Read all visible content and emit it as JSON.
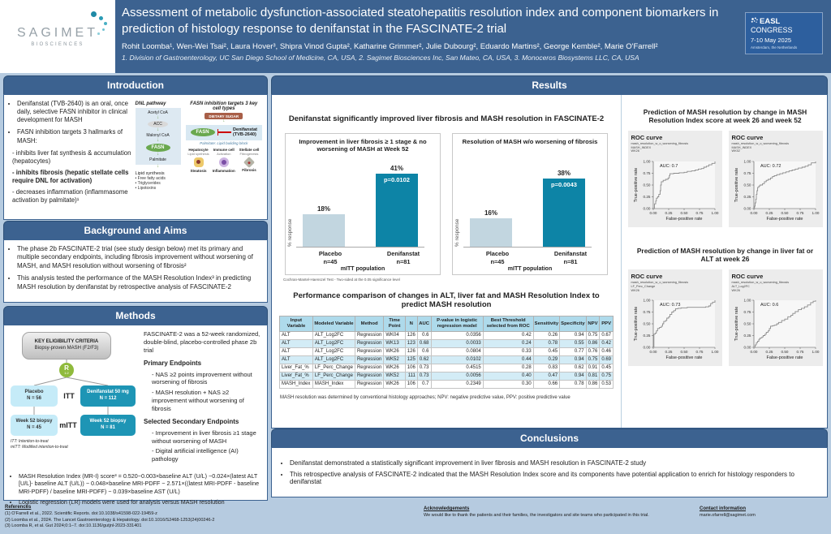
{
  "colors": {
    "poster_bg": "#b6cbe0",
    "header_bg": "#3c6290",
    "section_header_bg": "#3c6290",
    "badge_bg": "#2d5f9e",
    "teal_bar": "#0d84a6",
    "light_bar": "#c2d6e0",
    "flow_light": "#c5ebf8",
    "flow_teal": "#1e95b5",
    "randomize_green": "#8fba3c",
    "table_header_bg": "#aedaeb",
    "table_alt_row_bg": "#d3ecf6",
    "roc_panel_bg": "#ececec"
  },
  "header": {
    "logo_name": "SAGIMET",
    "logo_sub": "BIOSCIENCES",
    "title": "Assessment of metabolic dysfunction-associated steatohepatitis resolution index and component biomarkers in prediction of histology response to denifanstat in the FASCINATE-2 trial",
    "authors": "Rohit Loomba¹, Wen-Wei Tsai², Laura Hover³, Shipra Vinod Gupta², Katharine Grimmer², Julie Dubourg², Eduardo Martins², George Kemble², Marie O'Farrell²",
    "affiliations": "1.  Division of Gastroenterology, UC San Diego School of Medicine, CA, USA, 2. Sagimet Biosciences Inc, San Mateo, CA, USA, 3. Monoceros Biosystems LLC, CA, USA",
    "badge": {
      "name": "EASL",
      "congress": " CONGRESS",
      "date": "7-10 May 2025",
      "location": "Amsterdam, the Netherlands"
    }
  },
  "intro": {
    "title": "Introduction",
    "bullets": [
      "Denifanstat (TVB-2640) is an oral, once daily, selective FASN inhibitor in clinical development for MASH",
      "FASN inhibition targets 3 hallmarks of MASH:"
    ],
    "subs": [
      "- inhibits liver fat synthesis & accumulation (hepatocytes)",
      "- inhibits fibrosis (hepatic stellate cells require DNL for activation)",
      "- decreases inflammation (inflammasome activation by palmitate)¹"
    ],
    "diagram": {
      "dnl_title": "DNL pathway",
      "steps": [
        "Acetyl CoA",
        "ACC",
        "Malonyl CoA",
        "FASN",
        "Palmitate"
      ],
      "lipid_title": "Lipid synthesis",
      "lipid_items": [
        "• Free fatty acids",
        "• Triglycerides",
        "• Lipotoxins"
      ],
      "cells_title": "FASN inhibition targets 3 key cell types",
      "dietary_sugar": "DIETARY SUGAR",
      "fasn": "FASN",
      "inhibitor": "Denifanstat (TVB-2640)",
      "palmitate_note": "Palmitate: Lipid building block",
      "cells": [
        {
          "name": "Hepatocyte",
          "func": "Lipid synthesis",
          "outcome": "Steatosis"
        },
        {
          "name": "Immune cell",
          "func": "Activation",
          "outcome": "Inflammation"
        },
        {
          "name": "Stellate cell",
          "func": "Fibrogenesis",
          "outcome": "Fibrosis"
        }
      ]
    }
  },
  "background": {
    "title": "Background and Aims",
    "bullets": [
      "The phase 2b FASCINATE-2 trial (see study design below) met its primary and multiple secondary endpoints, including fibrosis improvement without worsening of MASH, and MASH resolution without worsening of fibrosis²",
      "This analysis tested the performance of the MASH Resolution Index³ in predicting MASH resolution by denifanstat by retrospective analysis of FASCINATE-2"
    ]
  },
  "methods": {
    "title": "Methods",
    "flow": {
      "eligibility_title": "KEY ELIGIBILITY CRITERIA",
      "eligibility_sub": "Biopsy-proven MASH (F2/F3)",
      "randomize": "R",
      "ratio": "1:2",
      "placebo": "Placebo",
      "placebo_n": "N = 56",
      "itt": "ITT",
      "active": "Denifanstat 50 mg",
      "active_n": "N = 112",
      "biopsy_left": "Week 52 biopsy",
      "biopsy_left_n": "N = 45",
      "mitt": "mITT",
      "biopsy_right": "Week 52 biopsy",
      "biopsy_right_n": "N = 81",
      "itt_note": "ITT: Intention-to-treat",
      "mitt_note": "mITT: Modified intention-to-treat"
    },
    "desc": "FASCINATE-2 was a 52-week randomized, double-blind, placebo-controlled phase 2b trial",
    "primary_title": "Primary Endpoints",
    "primary": [
      "NAS ≥2 points improvement without worsening of fibrosis",
      "MASH resolution + NAS ≥2 improvement without worsening of fibrosis"
    ],
    "secondary_title": "Selected Secondary Endpoints",
    "secondary": [
      "Improvement in liver fibrosis ≥1 stage without worsening of MASH",
      "Digital artificial intelligence (AI) pathology"
    ],
    "notes": [
      "MASH Resolution Index (MR-I) score³ = 0.520−0.003×baseline ALT (U/L) −0.024×(latest ALT [U/L]- baseline ALT (U/L)) − 0.048×baseline MRI-PDFF − 2.571×((latest MRI-PDFF - baseline MRI-PDFF) / baseline MRI-PDFF) − 0.039×baseline AST (U/L)",
      "Logistic regression (LR) models were used for analysis versus MASH resolution"
    ]
  },
  "results": {
    "title": "Results",
    "charts_heading": "Denifanstat significantly improved liver fibrosis and MASH resolution in FASCINATE-2",
    "charts_footnote": "Cochran-Mantel-Haenszel Test - Two-sided at the 0.05 significance level",
    "table_heading": "Performance comparison of changes in ALT, liver fat and MASH Resolution Index to predict MASH resolution",
    "table_footnote": "MASH resolution was determined by conventional histology approaches; NPV: negative predictive value, PPV: positive predictive value",
    "roc_top_heading": "Prediction of MASH resolution by change in MASH Resolution Index score at week 26 and week 52",
    "roc_bottom_heading": "Prediction of MASH resolution by change in liver fat or ALT at week 26"
  },
  "conclusions": {
    "title": "Conclusions",
    "bullets": [
      "Denifanstat demonstrated a statistically significant improvement in liver fibrosis and MASH resolution in FASCINATE-2 study",
      "This retrospective analysis of FASCINATE-2 indicated that the MASH Resolution Index score and its components have potential application to enrich for histology responders to denifanstat"
    ]
  },
  "footer": {
    "references_title": "References",
    "references": [
      "(1)   O'Farrell et al., 2022. Scientific Reports. doi:10.1038/s41598-022-19459-z",
      "(2)   Loomba et al., 2024. The Lancet Gastroenterology & Hepatology. doi:10.1016/S2468-1253(24)00246-2",
      "(3)   Loomba R, et al. Gut 2024;0:1–7. doi:10.1136/gutjnl-2023-331401"
    ],
    "ack_title": "Acknowledgements",
    "ack": "We would like to thank the patients and their families, the investigators and site teams who participated in this trial.",
    "contact_title": "Contact information",
    "contact": "marie.ofarrell@sagimet.com"
  },
  "chart_data": [
    {
      "type": "bar",
      "title": "Improvement in liver fibrosis ≥ 1 stage & no worsening of MASH at Week 52",
      "categories": [
        "Placebo",
        "Denifanstat"
      ],
      "ns": [
        "n=45",
        "n=81"
      ],
      "values": [
        18,
        41
      ],
      "value_labels": [
        "18%",
        "41%"
      ],
      "p_value": "p=0.0102",
      "ylabel": "% response",
      "xlabel": "mITT population",
      "ylim": [
        0,
        50
      ],
      "bar_colors": [
        "#c2d6e0",
        "#0d84a6"
      ]
    },
    {
      "type": "bar",
      "title": "Resolution of MASH w/o worsening of fibrosis",
      "categories": [
        "Placebo",
        "Denifanstat"
      ],
      "ns": [
        "n=45",
        "n=81"
      ],
      "values": [
        16,
        38
      ],
      "value_labels": [
        "16%",
        "38%"
      ],
      "p_value": "p=0.0043",
      "ylabel": "% response",
      "xlabel": "mITT population",
      "ylim": [
        0,
        50
      ],
      "bar_colors": [
        "#c2d6e0",
        "#0d84a6"
      ]
    },
    {
      "type": "roc",
      "title": "ROC curve",
      "subtitle": [
        "mash_resolution_w_o_worsening_fibrosis",
        "MASH_INDEX",
        "WK26"
      ],
      "auc": 0.7,
      "auc_label": "AUC: 0.7",
      "xlabel": "False-positive rate",
      "ylabel": "True-positive rate",
      "ticks": [
        "0.00",
        "0.25",
        "0.50",
        "0.75",
        "1.00"
      ],
      "points": [
        [
          0,
          0
        ],
        [
          0.02,
          0.1
        ],
        [
          0.04,
          0.16
        ],
        [
          0.05,
          0.22
        ],
        [
          0.07,
          0.25
        ],
        [
          0.09,
          0.3
        ],
        [
          0.11,
          0.38
        ],
        [
          0.12,
          0.5
        ],
        [
          0.13,
          0.57
        ],
        [
          0.16,
          0.6
        ],
        [
          0.2,
          0.62
        ],
        [
          0.24,
          0.65
        ],
        [
          0.26,
          0.7
        ],
        [
          0.27,
          0.74
        ],
        [
          0.33,
          0.75
        ],
        [
          0.42,
          0.76
        ],
        [
          0.5,
          0.77
        ],
        [
          0.55,
          0.79
        ],
        [
          0.62,
          0.8
        ],
        [
          0.68,
          0.82
        ],
        [
          0.73,
          0.84
        ],
        [
          0.78,
          0.85
        ],
        [
          0.82,
          0.88
        ],
        [
          0.86,
          0.9
        ],
        [
          0.9,
          0.93
        ],
        [
          0.95,
          0.96
        ],
        [
          1,
          1
        ]
      ]
    },
    {
      "type": "roc",
      "title": "ROC curve",
      "subtitle": [
        "mash_resolution_w_o_worsening_fibrosis",
        "MASH_INDEX",
        "WK52"
      ],
      "auc": 0.72,
      "auc_label": "AUC: 0.72",
      "xlabel": "False-positive rate",
      "ylabel": "True-positive rate",
      "ticks": [
        "0.00",
        "0.25",
        "0.50",
        "0.75",
        "1.00"
      ],
      "points": [
        [
          0,
          0
        ],
        [
          0.01,
          0.05
        ],
        [
          0.02,
          0.12
        ],
        [
          0.03,
          0.2
        ],
        [
          0.04,
          0.3
        ],
        [
          0.05,
          0.38
        ],
        [
          0.06,
          0.45
        ],
        [
          0.08,
          0.48
        ],
        [
          0.1,
          0.5
        ],
        [
          0.14,
          0.53
        ],
        [
          0.17,
          0.57
        ],
        [
          0.2,
          0.6
        ],
        [
          0.23,
          0.62
        ],
        [
          0.27,
          0.65
        ],
        [
          0.3,
          0.68
        ],
        [
          0.33,
          0.7
        ],
        [
          0.37,
          0.72
        ],
        [
          0.42,
          0.74
        ],
        [
          0.47,
          0.76
        ],
        [
          0.52,
          0.78
        ],
        [
          0.57,
          0.8
        ],
        [
          0.62,
          0.82
        ],
        [
          0.67,
          0.84
        ],
        [
          0.72,
          0.86
        ],
        [
          0.78,
          0.88
        ],
        [
          0.83,
          0.9
        ],
        [
          0.88,
          0.93
        ],
        [
          0.93,
          0.97
        ],
        [
          1,
          1
        ]
      ]
    },
    {
      "type": "roc",
      "title": "ROC curve",
      "subtitle": [
        "mash_resolution_w_o_worsening_fibrosis",
        "LF_Perc_Change",
        "WK26"
      ],
      "auc": 0.73,
      "auc_label": "AUC: 0.73",
      "xlabel": "False-positive rate",
      "ylabel": "True-positive rate",
      "ticks": [
        "0.00",
        "0.25",
        "0.50",
        "0.75",
        "1.00"
      ],
      "points": [
        [
          0,
          0
        ],
        [
          0.01,
          0.28
        ],
        [
          0.03,
          0.3
        ],
        [
          0.05,
          0.35
        ],
        [
          0.07,
          0.4
        ],
        [
          0.1,
          0.42
        ],
        [
          0.13,
          0.45
        ],
        [
          0.15,
          0.5
        ],
        [
          0.17,
          0.55
        ],
        [
          0.2,
          0.57
        ],
        [
          0.22,
          0.62
        ],
        [
          0.25,
          0.65
        ],
        [
          0.27,
          0.7
        ],
        [
          0.3,
          0.75
        ],
        [
          0.33,
          0.78
        ],
        [
          0.36,
          0.82
        ],
        [
          0.4,
          0.83
        ],
        [
          0.45,
          0.84
        ],
        [
          0.55,
          0.85
        ],
        [
          0.65,
          0.85
        ],
        [
          0.75,
          0.85
        ],
        [
          0.85,
          0.86
        ],
        [
          0.9,
          0.88
        ],
        [
          0.93,
          0.93
        ],
        [
          0.96,
          0.96
        ],
        [
          1,
          1
        ]
      ]
    },
    {
      "type": "roc",
      "title": "ROC curve",
      "subtitle": [
        "mash_resolution_w_o_worsening_fibrosis",
        "ALT_Log2FC",
        "WK26"
      ],
      "auc": 0.6,
      "auc_label": "AUC: 0.6",
      "xlabel": "False-positive rate",
      "ylabel": "True-positive rate",
      "ticks": [
        "0.00",
        "0.25",
        "0.50",
        "0.75",
        "1.00"
      ],
      "points": [
        [
          0,
          0
        ],
        [
          0.02,
          0.05
        ],
        [
          0.04,
          0.1
        ],
        [
          0.06,
          0.13
        ],
        [
          0.08,
          0.17
        ],
        [
          0.1,
          0.2
        ],
        [
          0.13,
          0.22
        ],
        [
          0.15,
          0.25
        ],
        [
          0.18,
          0.28
        ],
        [
          0.2,
          0.32
        ],
        [
          0.23,
          0.35
        ],
        [
          0.25,
          0.4
        ],
        [
          0.27,
          0.45
        ],
        [
          0.3,
          0.46
        ],
        [
          0.33,
          0.47
        ],
        [
          0.37,
          0.5
        ],
        [
          0.4,
          0.53
        ],
        [
          0.45,
          0.57
        ],
        [
          0.5,
          0.6
        ],
        [
          0.55,
          0.65
        ],
        [
          0.6,
          0.68
        ],
        [
          0.63,
          0.72
        ],
        [
          0.67,
          0.76
        ],
        [
          0.72,
          0.8
        ],
        [
          0.77,
          0.83
        ],
        [
          0.82,
          0.86
        ],
        [
          0.87,
          0.9
        ],
        [
          0.92,
          0.95
        ],
        [
          0.96,
          0.98
        ],
        [
          1,
          1
        ]
      ]
    },
    {
      "type": "table",
      "columns": [
        "Input Variable",
        "Modeled Variable",
        "Method",
        "Time Point",
        "N",
        "AUC",
        "P-value in logistic regression model",
        "Best Threshold selected from ROC",
        "Sensitivity",
        "Specificity",
        "NPV",
        "PPV"
      ],
      "rows": [
        [
          "ALT",
          "ALT_Log2FC",
          "Regression",
          "WK04",
          "126",
          "0.6",
          "0.0356",
          "0.42",
          "0.26",
          "0.94",
          "0.75",
          "0.67"
        ],
        [
          "ALT",
          "ALT_Log2FC",
          "Regression",
          "WK13",
          "123",
          "0.68",
          "0.0033",
          "0.24",
          "0.78",
          "0.55",
          "0.86",
          "0.42"
        ],
        [
          "ALT",
          "ALT_Log2FC",
          "Regression",
          "WK26",
          "126",
          "0.6",
          "0.0804",
          "0.33",
          "0.45",
          "0.77",
          "0.76",
          "0.46"
        ],
        [
          "ALT",
          "ALT_Log2FC",
          "Regression",
          "WK52",
          "125",
          "0.62",
          "0.0102",
          "0.44",
          "0.29",
          "0.94",
          "0.75",
          "0.69"
        ],
        [
          "Liver_Fat_%",
          "LF_Perc_Change",
          "Regression",
          "WK26",
          "106",
          "0.73",
          "0.4515",
          "0.28",
          "0.83",
          "0.62",
          "0.91",
          "0.45"
        ],
        [
          "Liver_Fat_%",
          "LF_Perc_Change",
          "Regression",
          "WK52",
          "111",
          "0.73",
          "0.0056",
          "0.40",
          "0.47",
          "0.94",
          "0.81",
          "0.75"
        ],
        [
          "MASH_Index",
          "MASH_Index",
          "Regression",
          "WK26",
          "106",
          "0.7",
          "0.2349",
          "0.30",
          "0.66",
          "0.78",
          "0.86",
          "0.53"
        ]
      ]
    }
  ]
}
